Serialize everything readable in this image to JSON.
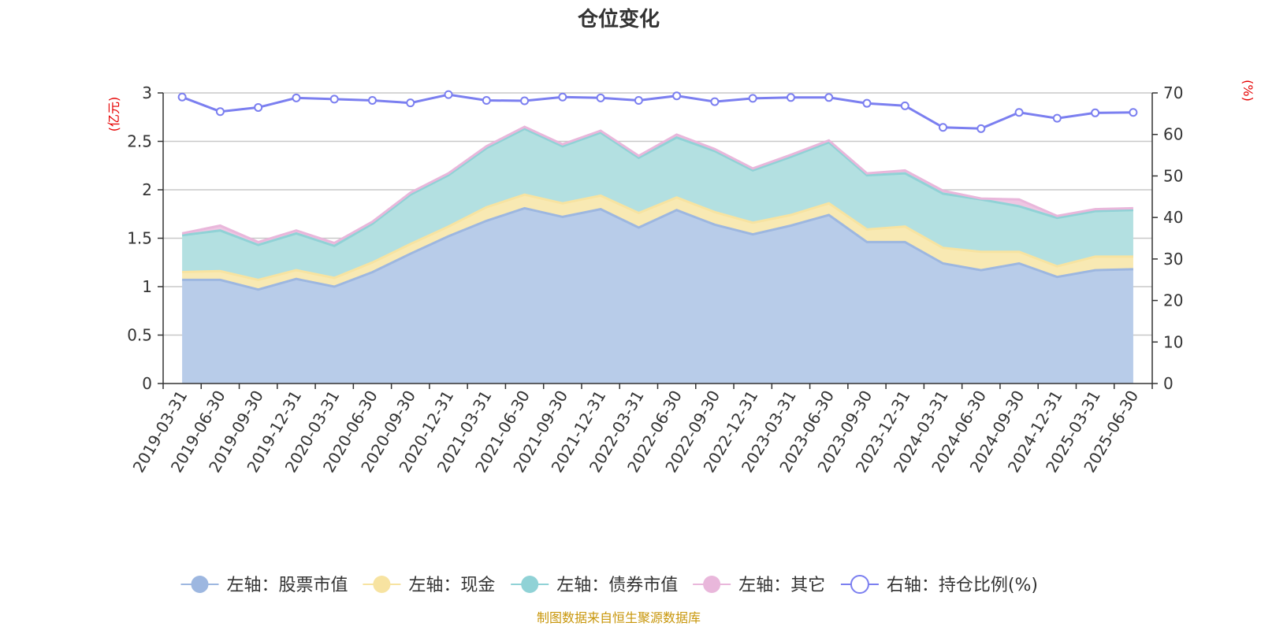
{
  "chart_data": {
    "type": "area",
    "title": "仓位变化",
    "left_axis_unit": "(亿元)",
    "right_axis_unit": "(%)",
    "categories": [
      "2019-03-31",
      "2019-06-30",
      "2019-09-30",
      "2019-12-31",
      "2020-03-31",
      "2020-06-30",
      "2020-09-30",
      "2020-12-31",
      "2021-03-31",
      "2021-06-30",
      "2021-09-30",
      "2021-12-31",
      "2022-03-31",
      "2022-06-30",
      "2022-09-30",
      "2022-12-31",
      "2023-03-31",
      "2023-06-30",
      "2023-09-30",
      "2023-12-31",
      "2024-03-31",
      "2024-06-30",
      "2024-09-30",
      "2024-12-31",
      "2025-03-31",
      "2025-06-30"
    ],
    "left_ylim": [
      0,
      3
    ],
    "left_ticks": [
      "0",
      "0.5",
      "1",
      "1.5",
      "2",
      "2.5",
      "3"
    ],
    "right_ylim": [
      0,
      70
    ],
    "right_ticks": [
      "0",
      "10",
      "20",
      "30",
      "40",
      "50",
      "60",
      "70"
    ],
    "grid": true,
    "legend_position": "bottom",
    "series": [
      {
        "name": "左轴：股票市值",
        "axis": "left",
        "stacked": true,
        "color": "#9db7e0",
        "fill": "#b8cce9",
        "values": [
          1.07,
          1.07,
          0.97,
          1.08,
          1.0,
          1.15,
          1.34,
          1.52,
          1.68,
          1.81,
          1.72,
          1.8,
          1.61,
          1.79,
          1.64,
          1.54,
          1.63,
          1.74,
          1.46,
          1.46,
          1.24,
          1.17,
          1.24,
          1.1,
          1.17,
          1.18
        ]
      },
      {
        "name": "左轴：现金",
        "axis": "left",
        "stacked": true,
        "color": "#f7e3a1",
        "fill": "#f8e9b3",
        "values": [
          0.08,
          0.09,
          0.1,
          0.09,
          0.09,
          0.1,
          0.1,
          0.1,
          0.14,
          0.14,
          0.14,
          0.14,
          0.15,
          0.13,
          0.13,
          0.12,
          0.11,
          0.12,
          0.13,
          0.16,
          0.16,
          0.19,
          0.12,
          0.11,
          0.14,
          0.13
        ]
      },
      {
        "name": "左轴：债券市值",
        "axis": "left",
        "stacked": true,
        "color": "#90d2d6",
        "fill": "#b3e0e1",
        "values": [
          0.38,
          0.42,
          0.36,
          0.38,
          0.33,
          0.4,
          0.51,
          0.53,
          0.61,
          0.68,
          0.59,
          0.65,
          0.57,
          0.62,
          0.63,
          0.54,
          0.6,
          0.63,
          0.56,
          0.55,
          0.56,
          0.54,
          0.47,
          0.5,
          0.47,
          0.48
        ]
      },
      {
        "name": "左轴：其它",
        "axis": "left",
        "stacked": true,
        "color": "#e9b7db",
        "fill": "#eec6e2",
        "values": [
          0.02,
          0.05,
          0.03,
          0.03,
          0.03,
          0.02,
          0.02,
          0.02,
          0.02,
          0.02,
          0.02,
          0.02,
          0.02,
          0.03,
          0.02,
          0.02,
          0.02,
          0.02,
          0.02,
          0.03,
          0.03,
          0.01,
          0.07,
          0.02,
          0.02,
          0.02
        ]
      },
      {
        "name": "右轴：持仓比例(%)",
        "axis": "right",
        "type": "line",
        "color": "#7b7ff0",
        "values": [
          69.0,
          65.5,
          66.5,
          68.8,
          68.5,
          68.2,
          67.6,
          69.6,
          68.2,
          68.1,
          69.0,
          68.8,
          68.2,
          69.3,
          67.9,
          68.7,
          68.9,
          68.9,
          67.5,
          66.9,
          61.7,
          61.4,
          65.3,
          63.9,
          65.2,
          65.3
        ]
      }
    ],
    "source_note": "制图数据来自恒生聚源数据库"
  }
}
